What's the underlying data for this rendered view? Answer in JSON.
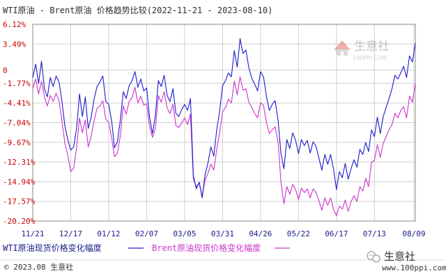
{
  "chart_data": {
    "type": "line",
    "title": "WTI原油 - Brent原油 价格趋势比较(2022-11-21 - 2023-08-10)",
    "y_tick_labels": [
      "6.12%",
      "3.49%",
      "0",
      "-1.77%",
      "-4.41%",
      "-7.04%",
      "-9.67%",
      "-12.31%",
      "-14.94%",
      "-17.57%",
      "-20.20%"
    ],
    "y_tick_values": [
      6.12,
      3.49,
      0,
      -1.77,
      -4.41,
      -7.04,
      -9.67,
      -12.31,
      -14.94,
      -17.57,
      -20.2
    ],
    "ylim": [
      -20.2,
      6.12
    ],
    "x_tick_labels": [
      "11/21",
      "12/17",
      "01/12",
      "02/07",
      "03/05",
      "03/31",
      "04/26",
      "05/22",
      "06/17",
      "07/13",
      "08/09"
    ],
    "x_tick_positions": [
      0,
      26,
      52,
      78,
      104,
      130,
      156,
      182,
      208,
      234,
      261
    ],
    "x_range": [
      0,
      262
    ],
    "grid": true,
    "legend_position": "bottom",
    "series": [
      {
        "name": "WTI原油现货价格变化幅度",
        "color": "#1a1acc",
        "points": [
          [
            0,
            -1
          ],
          [
            2,
            0.8
          ],
          [
            4,
            -1.8
          ],
          [
            6,
            1.2
          ],
          [
            8,
            -2.5
          ],
          [
            10,
            -3.6
          ],
          [
            12,
            -1
          ],
          [
            14,
            -2.2
          ],
          [
            16,
            -0.8
          ],
          [
            18,
            -1.6
          ],
          [
            20,
            -4.2
          ],
          [
            22,
            -7.5
          ],
          [
            24,
            -9.3
          ],
          [
            26,
            -10.7
          ],
          [
            28,
            -10.3
          ],
          [
            30,
            -7.8
          ],
          [
            32,
            -3.2
          ],
          [
            34,
            -6.2
          ],
          [
            36,
            -3.6
          ],
          [
            38,
            -7.8
          ],
          [
            40,
            -6.3
          ],
          [
            42,
            -3.9
          ],
          [
            44,
            -2.2
          ],
          [
            46,
            -1.6
          ],
          [
            48,
            -0.8
          ],
          [
            50,
            -4.2
          ],
          [
            52,
            -4.6
          ],
          [
            54,
            -6.8
          ],
          [
            56,
            -10.4
          ],
          [
            58,
            -9.6
          ],
          [
            60,
            -6.7
          ],
          [
            62,
            -2.9
          ],
          [
            64,
            -3.8
          ],
          [
            66,
            -2.1
          ],
          [
            68,
            -1.4
          ],
          [
            70,
            -0.2
          ],
          [
            72,
            -2.3
          ],
          [
            74,
            -1.2
          ],
          [
            76,
            -2.8
          ],
          [
            78,
            -2.4
          ],
          [
            80,
            -6.3
          ],
          [
            82,
            -8.5
          ],
          [
            84,
            -6.1
          ],
          [
            86,
            -1.4
          ],
          [
            88,
            -2.2
          ],
          [
            90,
            -0.7
          ],
          [
            92,
            -3.4
          ],
          [
            94,
            -4.2
          ],
          [
            96,
            -2.5
          ],
          [
            98,
            -5.8
          ],
          [
            100,
            -6.2
          ],
          [
            102,
            -5.3
          ],
          [
            104,
            -4.6
          ],
          [
            106,
            -5.4
          ],
          [
            108,
            -3.8
          ],
          [
            110,
            -14.2
          ],
          [
            112,
            -15.9
          ],
          [
            114,
            -15.0
          ],
          [
            116,
            -17.1
          ],
          [
            118,
            -14.0
          ],
          [
            120,
            -12.4
          ],
          [
            122,
            -10.3
          ],
          [
            124,
            -11.5
          ],
          [
            126,
            -8.0
          ],
          [
            128,
            -5.5
          ],
          [
            130,
            -2.1
          ],
          [
            132,
            -1.4
          ],
          [
            134,
            -0.4
          ],
          [
            136,
            -0.9
          ],
          [
            138,
            2.6
          ],
          [
            140,
            0.4
          ],
          [
            142,
            4.2
          ],
          [
            144,
            2.2
          ],
          [
            146,
            2.7
          ],
          [
            148,
            0.3
          ],
          [
            150,
            -1.1
          ],
          [
            152,
            -1.9
          ],
          [
            154,
            -2.8
          ],
          [
            156,
            -0.2
          ],
          [
            158,
            -0.9
          ],
          [
            160,
            -3.5
          ],
          [
            162,
            -5.4
          ],
          [
            164,
            -4.6
          ],
          [
            166,
            -4.1
          ],
          [
            168,
            -6.7
          ],
          [
            170,
            -11.2
          ],
          [
            172,
            -13.2
          ],
          [
            174,
            -9.3
          ],
          [
            176,
            -10.5
          ],
          [
            178,
            -8.4
          ],
          [
            180,
            -9.4
          ],
          [
            182,
            -11.2
          ],
          [
            184,
            -9.3
          ],
          [
            186,
            -10.1
          ],
          [
            188,
            -9.4
          ],
          [
            190,
            -11.1
          ],
          [
            192,
            -9.6
          ],
          [
            194,
            -10.2
          ],
          [
            196,
            -11.8
          ],
          [
            198,
            -13.4
          ],
          [
            200,
            -11.3
          ],
          [
            202,
            -12.6
          ],
          [
            204,
            -11.3
          ],
          [
            206,
            -13.3
          ],
          [
            208,
            -16.0
          ],
          [
            210,
            -13.6
          ],
          [
            212,
            -14.4
          ],
          [
            214,
            -12.5
          ],
          [
            216,
            -14.6
          ],
          [
            218,
            -13.2
          ],
          [
            220,
            -12.0
          ],
          [
            222,
            -13.0
          ],
          [
            224,
            -10.6
          ],
          [
            226,
            -11.3
          ],
          [
            228,
            -9.7
          ],
          [
            230,
            -10.9
          ],
          [
            232,
            -8.0
          ],
          [
            234,
            -8.9
          ],
          [
            236,
            -6.3
          ],
          [
            238,
            -8.5
          ],
          [
            240,
            -6.2
          ],
          [
            242,
            -5.0
          ],
          [
            244,
            -3.8
          ],
          [
            246,
            -2.5
          ],
          [
            248,
            -0.7
          ],
          [
            250,
            -1.2
          ],
          [
            252,
            -0.4
          ],
          [
            254,
            0.5
          ],
          [
            256,
            -1.0
          ],
          [
            258,
            1.9
          ],
          [
            260,
            1.1
          ],
          [
            262,
            3.6
          ]
        ]
      },
      {
        "name": "Brent原油现货价格变化幅度",
        "color": "#cc33cc",
        "points": [
          [
            0,
            -2.5
          ],
          [
            2,
            -1.2
          ],
          [
            4,
            -3.2
          ],
          [
            6,
            -1.5
          ],
          [
            8,
            -3.6
          ],
          [
            10,
            -4.8
          ],
          [
            12,
            -3.4
          ],
          [
            14,
            -4.2
          ],
          [
            16,
            -3.1
          ],
          [
            18,
            -4.1
          ],
          [
            20,
            -6.8
          ],
          [
            22,
            -9.8
          ],
          [
            24,
            -11.4
          ],
          [
            26,
            -13.6
          ],
          [
            28,
            -13.1
          ],
          [
            30,
            -10.4
          ],
          [
            32,
            -6.4
          ],
          [
            34,
            -8.4
          ],
          [
            36,
            -6.7
          ],
          [
            38,
            -10.3
          ],
          [
            40,
            -8.8
          ],
          [
            42,
            -6.8
          ],
          [
            44,
            -5.1
          ],
          [
            46,
            -4.8
          ],
          [
            48,
            -4.1
          ],
          [
            50,
            -6.6
          ],
          [
            52,
            -7.0
          ],
          [
            54,
            -9.1
          ],
          [
            56,
            -11.6
          ],
          [
            58,
            -11.1
          ],
          [
            60,
            -8.8
          ],
          [
            62,
            -4.8
          ],
          [
            64,
            -5.9
          ],
          [
            66,
            -4.2
          ],
          [
            68,
            -3.7
          ],
          [
            70,
            -2.3
          ],
          [
            72,
            -4.4
          ],
          [
            74,
            -3.5
          ],
          [
            76,
            -4.7
          ],
          [
            78,
            -4.5
          ],
          [
            80,
            -7.5
          ],
          [
            82,
            -9.0
          ],
          [
            84,
            -7.8
          ],
          [
            86,
            -3.4
          ],
          [
            88,
            -4.3
          ],
          [
            90,
            -2.9
          ],
          [
            92,
            -5.1
          ],
          [
            94,
            -5.8
          ],
          [
            96,
            -4.6
          ],
          [
            98,
            -7.4
          ],
          [
            100,
            -7.7
          ],
          [
            102,
            -7.1
          ],
          [
            104,
            -6.4
          ],
          [
            106,
            -7.3
          ],
          [
            108,
            -5.9
          ],
          [
            110,
            -14.6
          ],
          [
            112,
            -15.6
          ],
          [
            114,
            -15.1
          ],
          [
            116,
            -16.9
          ],
          [
            118,
            -14.7
          ],
          [
            120,
            -13.8
          ],
          [
            122,
            -12.6
          ],
          [
            124,
            -13.4
          ],
          [
            126,
            -10.6
          ],
          [
            128,
            -8.4
          ],
          [
            130,
            -5.6
          ],
          [
            132,
            -5.0
          ],
          [
            134,
            -3.9
          ],
          [
            136,
            -4.4
          ],
          [
            138,
            -1.5
          ],
          [
            140,
            -3.3
          ],
          [
            142,
            -0.9
          ],
          [
            144,
            -2.7
          ],
          [
            146,
            -2.5
          ],
          [
            148,
            -4.3
          ],
          [
            150,
            -5.0
          ],
          [
            152,
            -5.8
          ],
          [
            154,
            -6.4
          ],
          [
            156,
            -4.4
          ],
          [
            158,
            -4.7
          ],
          [
            160,
            -7.0
          ],
          [
            162,
            -8.5
          ],
          [
            164,
            -8.0
          ],
          [
            166,
            -7.6
          ],
          [
            168,
            -9.6
          ],
          [
            170,
            -15.0
          ],
          [
            172,
            -17.9
          ],
          [
            174,
            -15.6
          ],
          [
            176,
            -16.6
          ],
          [
            178,
            -15.3
          ],
          [
            180,
            -16.0
          ],
          [
            182,
            -17.3
          ],
          [
            184,
            -15.8
          ],
          [
            186,
            -16.4
          ],
          [
            188,
            -15.9
          ],
          [
            190,
            -17.1
          ],
          [
            192,
            -15.9
          ],
          [
            194,
            -16.4
          ],
          [
            196,
            -17.5
          ],
          [
            198,
            -18.8
          ],
          [
            200,
            -17.1
          ],
          [
            202,
            -18.1
          ],
          [
            204,
            -17.1
          ],
          [
            206,
            -18.7
          ],
          [
            208,
            -19.5
          ],
          [
            210,
            -18.2
          ],
          [
            212,
            -18.6
          ],
          [
            214,
            -17.4
          ],
          [
            216,
            -18.9
          ],
          [
            218,
            -17.6
          ],
          [
            220,
            -16.8
          ],
          [
            222,
            -17.6
          ],
          [
            224,
            -15.6
          ],
          [
            226,
            -16.2
          ],
          [
            228,
            -14.5
          ],
          [
            230,
            -15.6
          ],
          [
            232,
            -12.3
          ],
          [
            234,
            -12.1
          ],
          [
            236,
            -10.0
          ],
          [
            238,
            -11.7
          ],
          [
            240,
            -9.8
          ],
          [
            242,
            -8.9
          ],
          [
            244,
            -8.0
          ],
          [
            246,
            -7.3
          ],
          [
            248,
            -5.8
          ],
          [
            250,
            -6.4
          ],
          [
            252,
            -5.4
          ],
          [
            254,
            -4.9
          ],
          [
            256,
            -6.4
          ],
          [
            258,
            -3.5
          ],
          [
            260,
            -4.3
          ],
          [
            262,
            -1.8
          ]
        ]
      }
    ]
  },
  "watermark": {
    "logo_text": "生意社",
    "url_text": "100PPI.COM"
  },
  "footer": {
    "copyright": "© 2023.08 生意社",
    "brand": "生意社",
    "website": "www.100ppi.com"
  },
  "colors": {
    "y_tick": "#cc0000",
    "x_tick": "#1a1a8c",
    "grid": "#cfcfcf",
    "frame": "#888888"
  }
}
